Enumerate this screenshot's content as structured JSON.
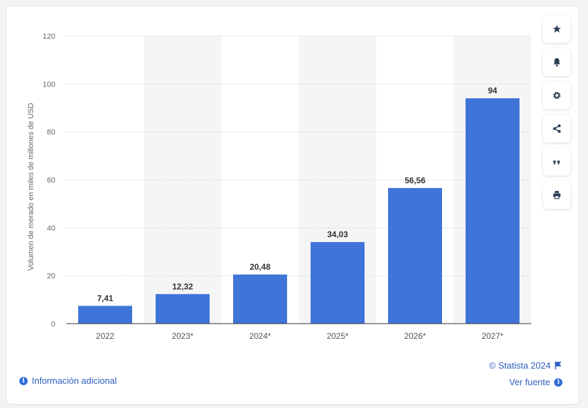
{
  "chart_data": {
    "type": "bar",
    "categories": [
      "2022",
      "2023*",
      "2024*",
      "2025*",
      "2026*",
      "2027*"
    ],
    "values": [
      7.41,
      12.32,
      20.48,
      34.03,
      56.56,
      94
    ],
    "value_labels": [
      "7,41",
      "12,32",
      "20,48",
      "34,03",
      "56,56",
      "94"
    ],
    "ylabel": "Volumen de merado en miles de millones de USD",
    "ylim": [
      0,
      120
    ],
    "yticks": [
      "0",
      "20",
      "40",
      "60",
      "80",
      "100",
      "120"
    ],
    "grid": true,
    "bar_color": "#3f74d8",
    "band_color": "#f5f5f6"
  },
  "toolbar": {
    "icons": [
      "star-icon",
      "bell-icon",
      "gear-icon",
      "share-icon",
      "quote-icon",
      "print-icon"
    ]
  },
  "footer": {
    "info_label": "Información adicional",
    "copyright": "© Statista 2024",
    "source_label": "Ver fuente"
  },
  "colors": {
    "accent": "#2f5fbf",
    "bar": "#3f74d8"
  }
}
